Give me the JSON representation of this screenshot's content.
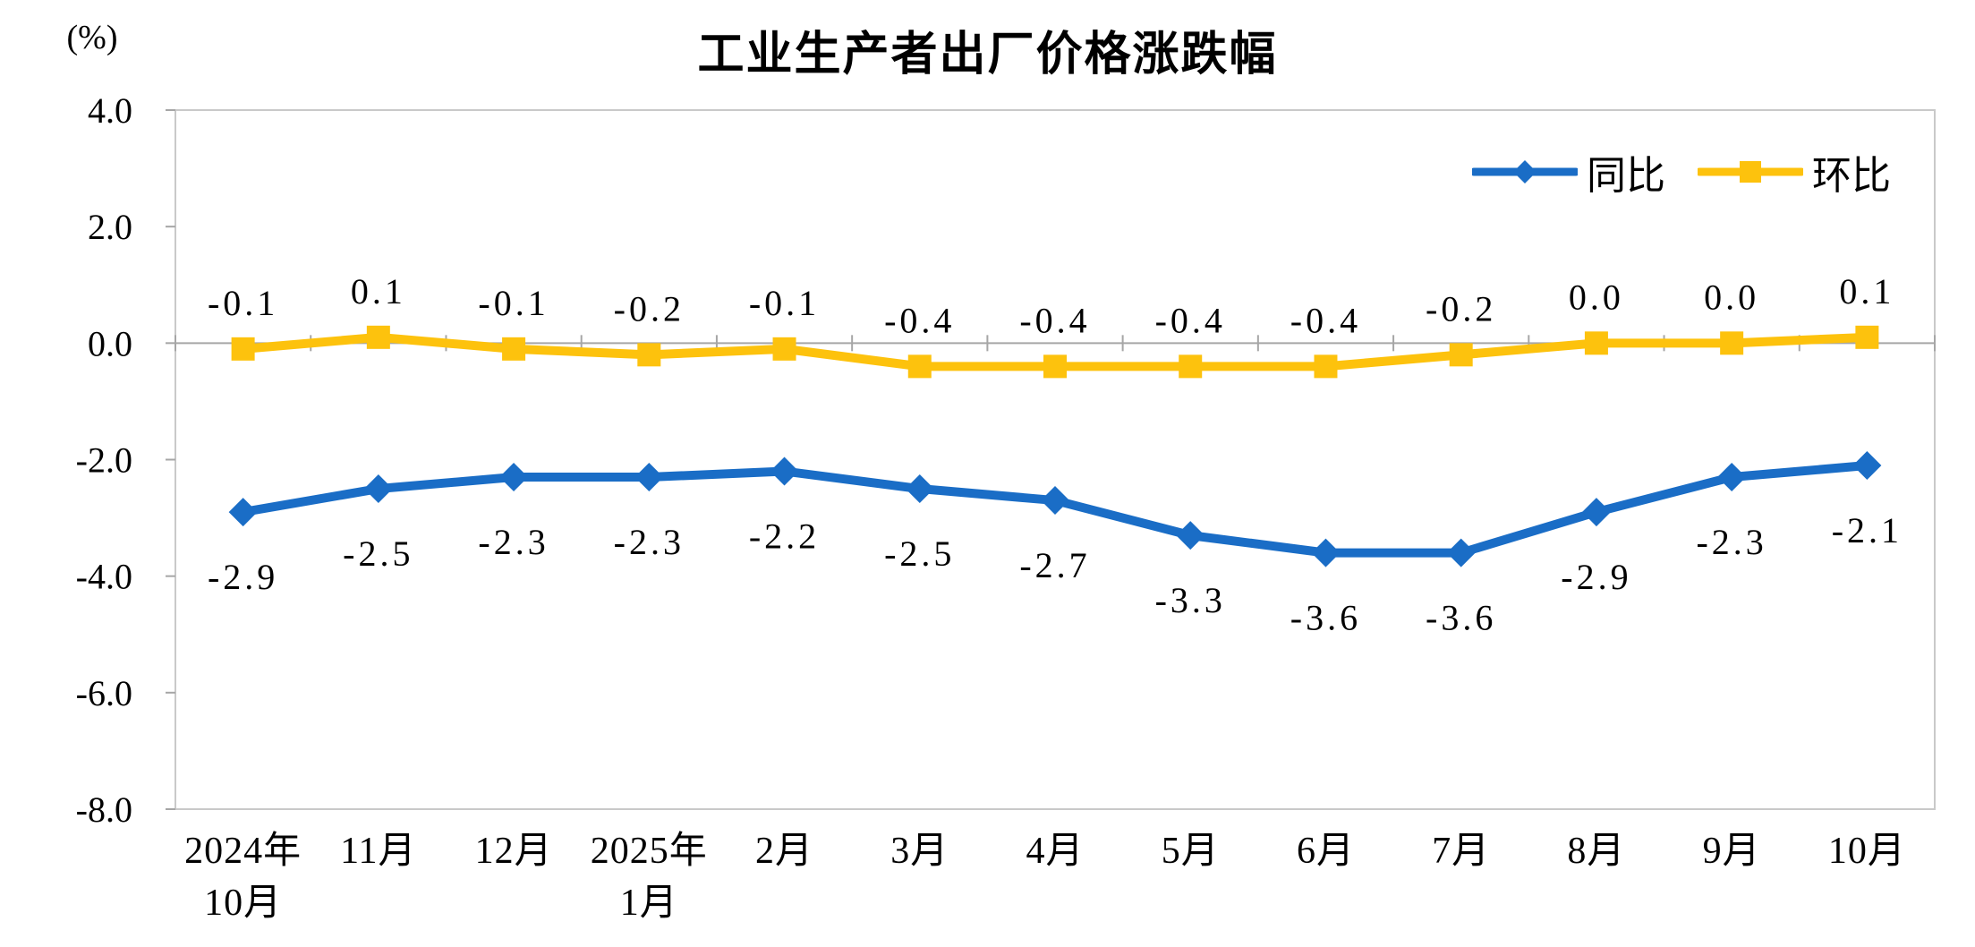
{
  "chart_data": {
    "type": "line",
    "title": "工业生产者出厂价格涨跌幅",
    "unit_label": "(%)",
    "categories": [
      [
        "2024年",
        "10月"
      ],
      [
        "11月"
      ],
      [
        "12月"
      ],
      [
        "2025年",
        "1月"
      ],
      [
        "2月"
      ],
      [
        "3月"
      ],
      [
        "4月"
      ],
      [
        "5月"
      ],
      [
        "6月"
      ],
      [
        "7月"
      ],
      [
        "8月"
      ],
      [
        "9月"
      ],
      [
        "10月"
      ]
    ],
    "series": [
      {
        "name": "同比",
        "key": "yoy",
        "color": "#1a6dc6",
        "marker": "diamond",
        "label_position": "below",
        "values": [
          -2.9,
          -2.5,
          -2.3,
          -2.3,
          -2.2,
          -2.5,
          -2.7,
          -3.3,
          -3.6,
          -3.6,
          -2.9,
          -2.3,
          -2.1
        ],
        "labels": [
          "-2.9",
          "-2.5",
          "-2.3",
          "-2.3",
          "-2.2",
          "-2.5",
          "-2.7",
          "-3.3",
          "-3.6",
          "-3.6",
          "-2.9",
          "-2.3",
          "-2.1"
        ]
      },
      {
        "name": "环比",
        "key": "mom",
        "color": "#fdc20d",
        "marker": "square",
        "label_position": "above",
        "values": [
          -0.1,
          0.1,
          -0.1,
          -0.2,
          -0.1,
          -0.4,
          -0.4,
          -0.4,
          -0.4,
          -0.2,
          0.0,
          0.0,
          0.1
        ],
        "labels": [
          "-0.1",
          "0.1",
          "-0.1",
          "-0.2",
          "-0.1",
          "-0.4",
          "-0.4",
          "-0.4",
          "-0.4",
          "-0.2",
          "0.0",
          "0.0",
          "0.1"
        ]
      }
    ],
    "y_axis": {
      "min": -8.0,
      "max": 4.0,
      "step": 2.0,
      "tick_labels": [
        "4.0",
        "2.0",
        "0.0",
        "-2.0",
        "-4.0",
        "-6.0",
        "-8.0"
      ]
    },
    "legend_position": "top-right",
    "grid": false,
    "colors": {
      "plot_border": "#c9c9c9",
      "axis_line": "#a6a6a6",
      "text": "#000000"
    }
  }
}
